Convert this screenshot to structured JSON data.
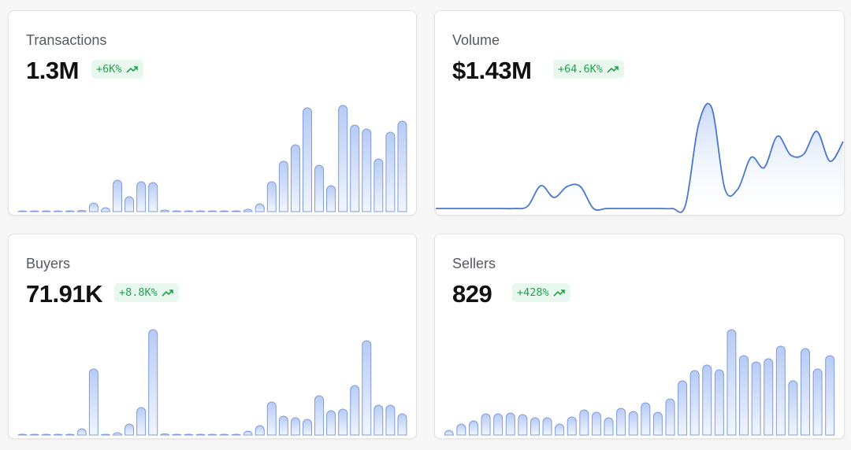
{
  "cards": [
    {
      "title": "Transactions",
      "value": "1.3M",
      "change": "+6K%",
      "trend_icon": "trending-up-icon",
      "chart_type": "bar",
      "values": [
        0,
        0,
        0,
        0,
        0.5,
        1.5,
        11,
        5,
        40,
        19,
        38,
        37,
        2,
        0.5,
        0.5,
        0.5,
        0.5,
        0.5,
        0.5,
        3,
        10,
        38,
        64,
        85,
        132,
        59,
        33,
        135,
        110,
        105,
        67,
        101,
        115
      ]
    },
    {
      "title": "Volume",
      "value": "$1.43M",
      "change": "+64.6K%",
      "trend_icon": "trending-up-icon",
      "chart_type": "area",
      "values": [
        0,
        0,
        0,
        0,
        0,
        0,
        0,
        3,
        29,
        14,
        28,
        28,
        0,
        0,
        0,
        0,
        0,
        0,
        0,
        4,
        107,
        128,
        25,
        25,
        65,
        52,
        92,
        68,
        69,
        98,
        60,
        85
      ]
    },
    {
      "title": "Buyers",
      "value": "71.91K",
      "change": "+8.8K%",
      "trend_icon": "trending-up-icon",
      "chart_type": "bar",
      "values": [
        0,
        0.5,
        0,
        0,
        0,
        8,
        84,
        1,
        3,
        14,
        35,
        134,
        1.5,
        0.5,
        0.5,
        0.5,
        0.5,
        0.5,
        0.5,
        5,
        12,
        42,
        24,
        22,
        20,
        50,
        31,
        33,
        63,
        120,
        38,
        38,
        27
      ]
    },
    {
      "title": "Sellers",
      "value": "829",
      "change": "+428%",
      "trend_icon": "trending-up-icon",
      "chart_type": "bar",
      "values": [
        6,
        14,
        18,
        27,
        27,
        28,
        26,
        22,
        22,
        14,
        23,
        32,
        29,
        22,
        34,
        30,
        41,
        29,
        46,
        69,
        82,
        89,
        83,
        134,
        101,
        93,
        97,
        113,
        69,
        110,
        84,
        101
      ]
    }
  ],
  "colors": {
    "line": "#4a78d0",
    "bar_stroke": "#7f9dd9",
    "bar_top": "#b7cbf5",
    "bar_bottom": "#f1f5fe",
    "badge_text": "#22a24d",
    "badge_bg": "#e9f8ee"
  }
}
